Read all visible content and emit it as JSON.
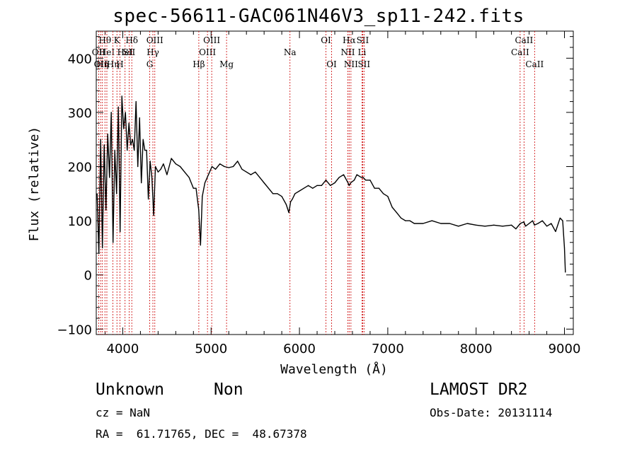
{
  "title": "spec-56611-GAC061N46V3_sp11-242.fits",
  "info": {
    "class_label": "Unknown",
    "subclass_label": "Non",
    "survey": "LAMOST DR2",
    "cz": "cz = NaN",
    "obs_date": "Obs-Date: 20131114",
    "coords": "RA =  61.71765, DEC =  48.67378"
  },
  "chart_data": {
    "type": "line",
    "xlabel": "Wavelength (Å)",
    "ylabel": "Flux (relative)",
    "xlim": [
      3700,
      9100
    ],
    "ylim": [
      -110,
      450
    ],
    "xticks": [
      4000,
      5000,
      6000,
      7000,
      8000,
      9000
    ],
    "yticks": [
      -100,
      0,
      100,
      200,
      300,
      400
    ],
    "grid": false,
    "line_color": "#000000",
    "marker_color": "#cc0000",
    "series": [
      {
        "x": [
          3710,
          3730,
          3750,
          3770,
          3790,
          3810,
          3830,
          3850,
          3870,
          3890,
          3910,
          3930,
          3950,
          3970,
          3990,
          4010,
          4030,
          4050,
          4070,
          4090,
          4110,
          4130,
          4150,
          4170,
          4190,
          4210,
          4230,
          4250,
          4270,
          4290,
          4310,
          4330,
          4350,
          4370,
          4400,
          4430,
          4460,
          4500,
          4550,
          4600,
          4650,
          4700,
          4750,
          4800,
          4830,
          4860,
          4880,
          4900,
          4930,
          4970,
          5010,
          5050,
          5100,
          5150,
          5200,
          5250,
          5300,
          5350,
          5400,
          5450,
          5500,
          5550,
          5600,
          5650,
          5700,
          5750,
          5800,
          5850,
          5880,
          5900,
          5920,
          5950,
          6000,
          6050,
          6100,
          6150,
          6200,
          6250,
          6300,
          6350,
          6400,
          6450,
          6500,
          6550,
          6563,
          6580,
          6620,
          6650,
          6700,
          6720,
          6750,
          6800,
          6850,
          6900,
          6950,
          7000,
          7050,
          7100,
          7150,
          7200,
          7250,
          7300,
          7400,
          7500,
          7600,
          7700,
          7800,
          7900,
          8000,
          8100,
          8200,
          8300,
          8400,
          8450,
          8500,
          8540,
          8560,
          8600,
          8640,
          8660,
          8700,
          8750,
          8800,
          8850,
          8900,
          8950,
          8980,
          9000,
          9010
        ],
        "y": [
          150,
          40,
          250,
          50,
          240,
          120,
          260,
          180,
          300,
          60,
          230,
          150,
          310,
          80,
          330,
          270,
          300,
          230,
          280,
          240,
          250,
          230,
          320,
          200,
          290,
          170,
          250,
          230,
          230,
          140,
          210,
          180,
          110,
          200,
          190,
          195,
          205,
          185,
          215,
          205,
          200,
          190,
          180,
          160,
          160,
          120,
          55,
          145,
          170,
          185,
          200,
          195,
          205,
          200,
          198,
          200,
          210,
          195,
          190,
          185,
          190,
          180,
          170,
          160,
          150,
          150,
          145,
          130,
          115,
          135,
          140,
          150,
          155,
          160,
          165,
          160,
          165,
          165,
          175,
          165,
          170,
          180,
          185,
          170,
          165,
          170,
          175,
          185,
          180,
          180,
          175,
          175,
          160,
          160,
          150,
          145,
          125,
          115,
          105,
          100,
          100,
          95,
          95,
          100,
          95,
          95,
          90,
          95,
          92,
          90,
          92,
          90,
          92,
          85,
          95,
          98,
          90,
          95,
          100,
          92,
          95,
          100,
          90,
          95,
          80,
          105,
          100,
          50,
          5
        ]
      }
    ],
    "lines": [
      {
        "wave": 3727,
        "label": "OII",
        "row": 2
      },
      {
        "wave": 3750,
        "label": "OII",
        "row": 3
      },
      {
        "wave": 3770,
        "label": "Hη",
        "row": 3
      },
      {
        "wave": 3798,
        "label": "Hθ",
        "row": 1
      },
      {
        "wave": 3820,
        "label": "HeI",
        "row": 2
      },
      {
        "wave": 3889,
        "label": "Hη",
        "row": 3
      },
      {
        "wave": 3934,
        "label": "K",
        "row": 1
      },
      {
        "wave": 3968,
        "label": "H",
        "row": 3
      },
      {
        "wave": 4026,
        "label": "HeI",
        "row": 2
      },
      {
        "wave": 4072,
        "label": "SII",
        "row": 2
      },
      {
        "wave": 4102,
        "label": "Hδ",
        "row": 1
      },
      {
        "wave": 4305,
        "label": "G",
        "row": 3
      },
      {
        "wave": 4341,
        "label": "Hγ",
        "row": 2
      },
      {
        "wave": 4363,
        "label": "OIII",
        "row": 1
      },
      {
        "wave": 4861,
        "label": "Hβ",
        "row": 3
      },
      {
        "wave": 4959,
        "label": "OIII",
        "row": 2
      },
      {
        "wave": 5007,
        "label": "OIII",
        "row": 1
      },
      {
        "wave": 5175,
        "label": "Mg",
        "row": 3
      },
      {
        "wave": 5893,
        "label": "Na",
        "row": 2
      },
      {
        "wave": 6300,
        "label": "OI",
        "row": 1
      },
      {
        "wave": 6364,
        "label": "OI",
        "row": 3
      },
      {
        "wave": 6548,
        "label": "NII",
        "row": 2
      },
      {
        "wave": 6563,
        "label": "Hα",
        "row": 1
      },
      {
        "wave": 6583,
        "label": "NII",
        "row": 3
      },
      {
        "wave": 6708,
        "label": "Li",
        "row": 2
      },
      {
        "wave": 6716,
        "label": "SII",
        "row": 1
      },
      {
        "wave": 6731,
        "label": "SII",
        "row": 3
      },
      {
        "wave": 8498,
        "label": "CaII",
        "row": 2
      },
      {
        "wave": 8542,
        "label": "CaII",
        "row": 1
      },
      {
        "wave": 8662,
        "label": "CaII",
        "row": 3
      }
    ]
  }
}
